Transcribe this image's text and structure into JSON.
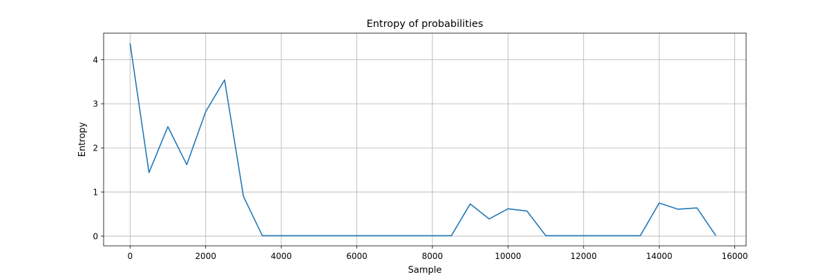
{
  "chart_data": {
    "type": "line",
    "title": "Entropy of probabilities",
    "xlabel": "Sample",
    "ylabel": "Entropy",
    "xlim": [
      -700,
      16300
    ],
    "ylim": [
      -0.22,
      4.6
    ],
    "xticks": [
      0,
      2000,
      4000,
      6000,
      8000,
      10000,
      12000,
      14000,
      16000
    ],
    "xtick_labels": [
      "0",
      "2000",
      "4000",
      "6000",
      "8000",
      "10000",
      "12000",
      "14000",
      "16000"
    ],
    "yticks": [
      0,
      1,
      2,
      3,
      4
    ],
    "ytick_labels": [
      "0",
      "1",
      "2",
      "3",
      "4"
    ],
    "grid": true,
    "legend": "none",
    "series": [
      {
        "color": "#1f77b4",
        "x": [
          0,
          500,
          1000,
          1500,
          2000,
          2500,
          3000,
          3500,
          4000,
          4500,
          5000,
          5500,
          6000,
          6500,
          7000,
          7500,
          8000,
          8500,
          9000,
          9500,
          10000,
          10500,
          11000,
          11500,
          12000,
          12500,
          13000,
          13500,
          14000,
          14500,
          15000,
          15500
        ],
        "values": [
          4.37,
          1.44,
          2.48,
          1.62,
          2.82,
          3.54,
          0.9,
          0.01,
          0.01,
          0.01,
          0.01,
          0.01,
          0.01,
          0.01,
          0.01,
          0.01,
          0.01,
          0.01,
          0.73,
          0.39,
          0.62,
          0.57,
          0.01,
          0.01,
          0.01,
          0.01,
          0.01,
          0.01,
          0.75,
          0.61,
          0.64,
          0.01
        ]
      }
    ]
  }
}
